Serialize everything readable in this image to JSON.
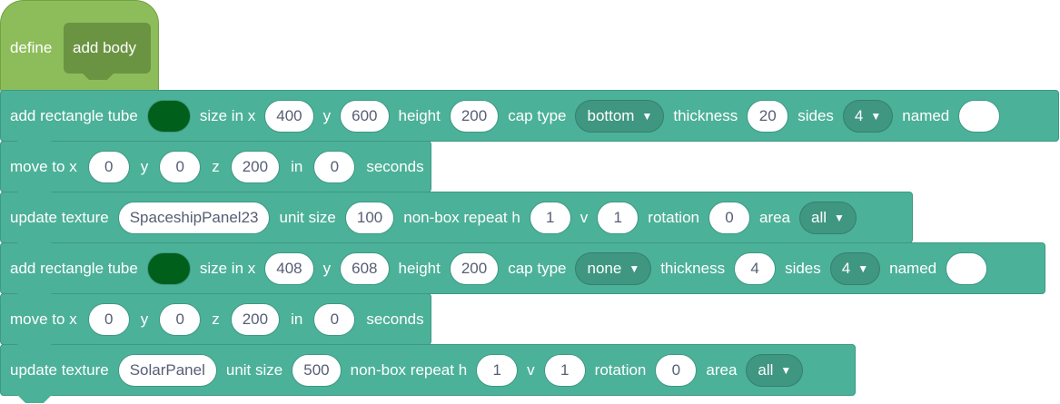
{
  "define": {
    "label": "define",
    "name": "add body"
  },
  "colors": {
    "block": "#4cb199",
    "define_hat": "#8cbd5a",
    "tube_color": "#005f1a"
  },
  "blocks": [
    {
      "type": "add_tube",
      "label": "add rectangle tube",
      "size_x_label": "size in x",
      "x": "400",
      "y_label": "y",
      "y": "600",
      "height_label": "height",
      "height": "200",
      "cap_label": "cap type",
      "cap": "bottom",
      "thickness_label": "thickness",
      "thickness": "20",
      "sides_label": "sides",
      "sides": "4",
      "named_label": "named",
      "named": ""
    },
    {
      "type": "move",
      "label": "move to x",
      "x": "0",
      "y_label": "y",
      "y": "0",
      "z_label": "z",
      "z": "200",
      "in_label": "in",
      "seconds": "0",
      "seconds_label": "seconds"
    },
    {
      "type": "texture",
      "label": "update texture",
      "texture": "SpaceshipPanel23",
      "unit_label": "unit size",
      "unit": "100",
      "repeat_label": "non-box repeat h",
      "h": "1",
      "v_label": "v",
      "v": "1",
      "rotation_label": "rotation",
      "rotation": "0",
      "area_label": "area",
      "area": "all"
    },
    {
      "type": "add_tube",
      "label": "add rectangle tube",
      "size_x_label": "size in x",
      "x": "408",
      "y_label": "y",
      "y": "608",
      "height_label": "height",
      "height": "200",
      "cap_label": "cap type",
      "cap": "none",
      "thickness_label": "thickness",
      "thickness": "4",
      "sides_label": "sides",
      "sides": "4",
      "named_label": "named",
      "named": ""
    },
    {
      "type": "move",
      "label": "move to x",
      "x": "0",
      "y_label": "y",
      "y": "0",
      "z_label": "z",
      "z": "200",
      "in_label": "in",
      "seconds": "0",
      "seconds_label": "seconds"
    },
    {
      "type": "texture",
      "label": "update texture",
      "texture": "SolarPanel",
      "unit_label": "unit size",
      "unit": "500",
      "repeat_label": "non-box repeat h",
      "h": "1",
      "v_label": "v",
      "v": "1",
      "rotation_label": "rotation",
      "rotation": "0",
      "area_label": "area",
      "area": "all"
    }
  ]
}
